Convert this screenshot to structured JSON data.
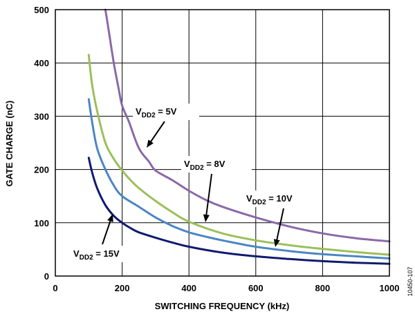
{
  "chart_data": {
    "type": "line",
    "xlabel": "SWITCHING FREQUENCY (kHz)",
    "ylabel": "GATE CHARGE (nC)",
    "xlim": [
      0,
      1000
    ],
    "ylim": [
      0,
      500
    ],
    "xticks": [
      "0",
      "200",
      "400",
      "600",
      "800",
      "1000"
    ],
    "yticks": [
      "0",
      "100",
      "200",
      "300",
      "400",
      "500"
    ],
    "grid": true,
    "figure_id": "10450-107",
    "series": [
      {
        "color": "#8a68a8",
        "x": [
          150,
          160,
          175,
          190,
          200,
          220,
          250,
          280,
          300,
          350,
          400,
          450,
          500,
          600,
          700,
          800,
          900,
          1000
        ],
        "y": [
          500,
          460,
          400,
          350,
          320,
          290,
          240,
          215,
          198,
          180,
          160,
          143,
          130,
          110,
          93,
          80,
          71,
          65
        ]
      },
      {
        "color": "#9bbf5a",
        "x": [
          100,
          110,
          125,
          150,
          175,
          200,
          225,
          250,
          300,
          350,
          400,
          500,
          600,
          700,
          800,
          900,
          1000
        ],
        "y": [
          415,
          360,
          310,
          250,
          220,
          198,
          180,
          165,
          141,
          120,
          102,
          80,
          67,
          58,
          51,
          45,
          40
        ]
      },
      {
        "color": "#4a86c4",
        "x": [
          100,
          110,
          125,
          150,
          175,
          200,
          250,
          300,
          350,
          400,
          450,
          500,
          600,
          700,
          800,
          900,
          1000
        ],
        "y": [
          332,
          290,
          240,
          200,
          170,
          150,
          130,
          110,
          94,
          82,
          74,
          67,
          55,
          47,
          41,
          37,
          33
        ]
      },
      {
        "color": "#0f1a6e",
        "x": [
          100,
          110,
          125,
          150,
          175,
          200,
          225,
          250,
          300,
          350,
          400,
          500,
          600,
          700,
          800,
          900,
          1000
        ],
        "y": [
          222,
          195,
          165,
          133,
          113,
          100,
          90,
          82,
          72,
          63,
          55,
          44,
          37,
          32,
          28,
          25,
          23
        ]
      }
    ],
    "annotations": [
      {
        "main": "V",
        "sub": "DD2",
        "value": " = 5V"
      },
      {
        "main": "V",
        "sub": "DD2",
        "value": " = 8V"
      },
      {
        "main": "V",
        "sub": "DD2",
        "value": " = 10V"
      },
      {
        "main": "V",
        "sub": "DD2",
        "value": " = 15V"
      }
    ]
  }
}
